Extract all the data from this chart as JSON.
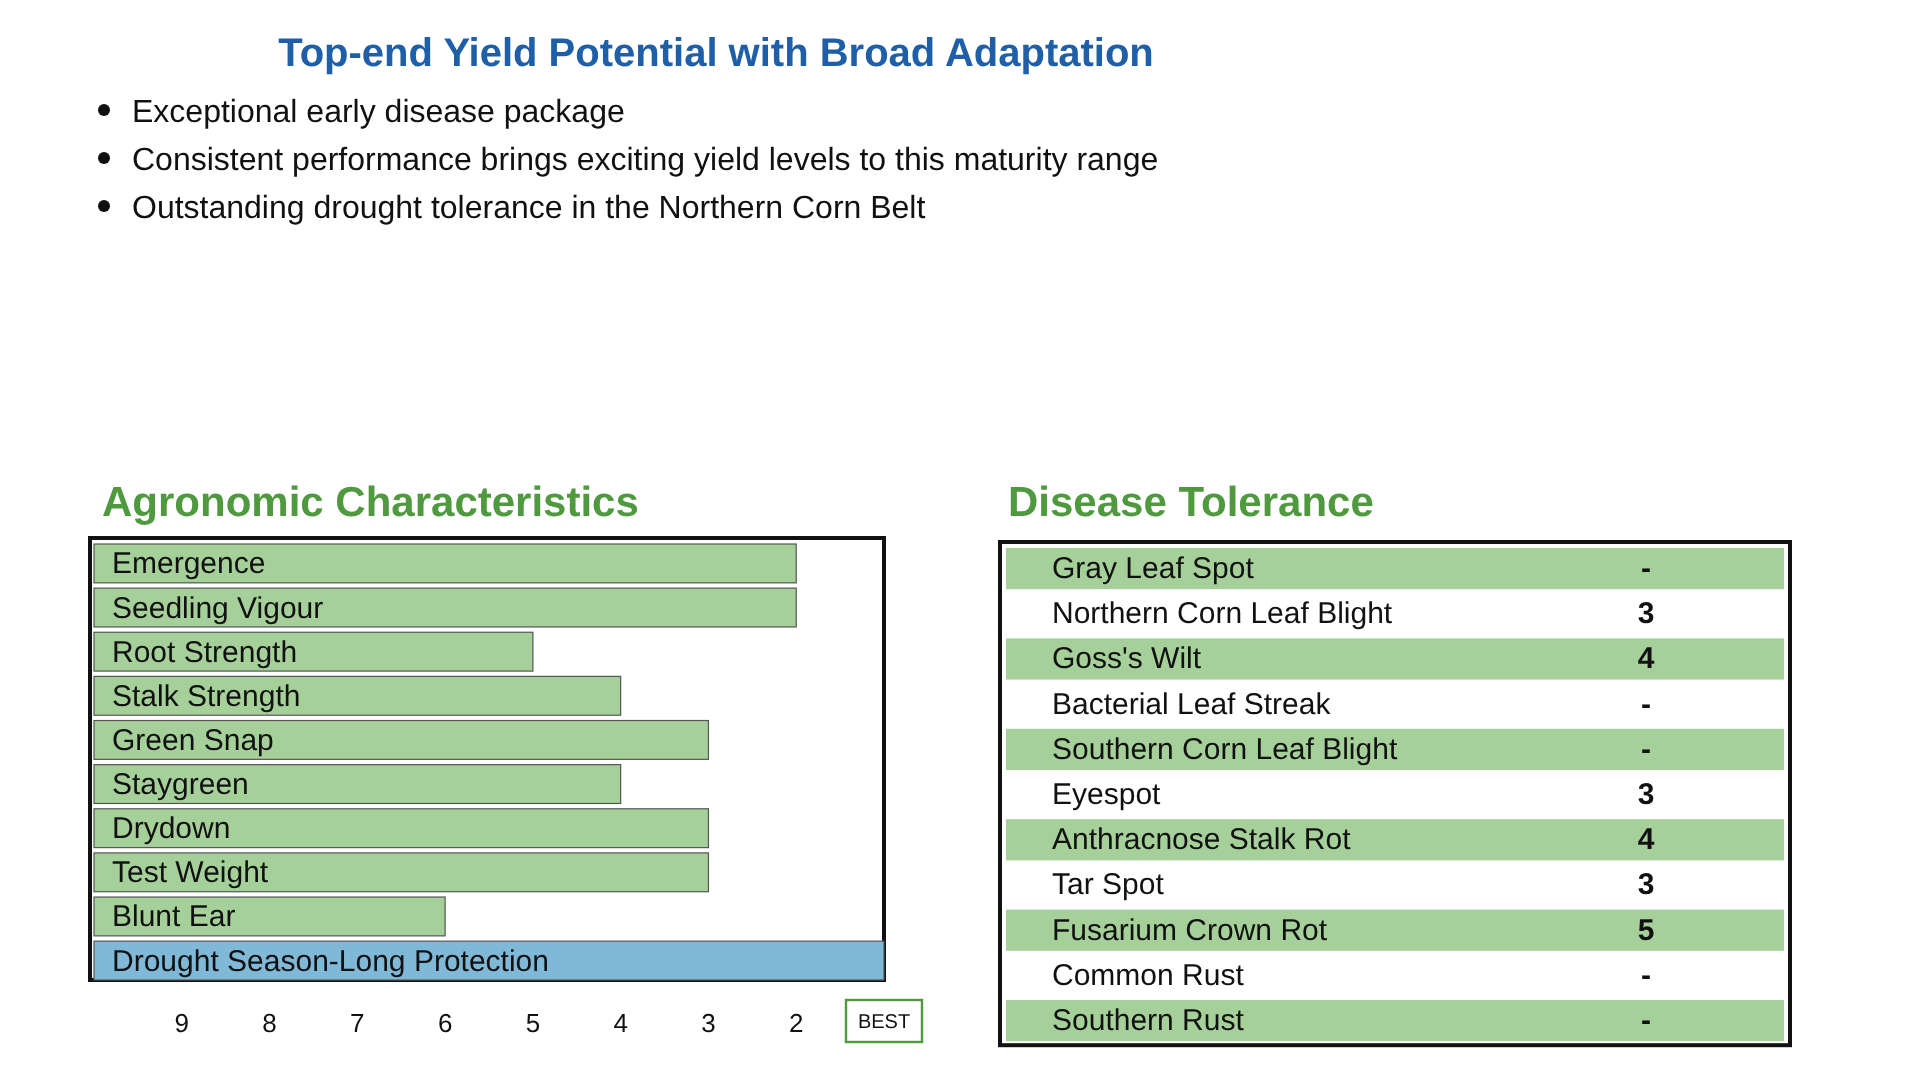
{
  "chart_data": [
    {
      "type": "bar",
      "orientation": "horizontal",
      "title": "Agronomic Characteristics",
      "annotations": [
        "Top-end Yield Potential with Broad Adaptation",
        "Exceptional early disease package",
        "Consistent performance brings exciting yield levels to this maturity range",
        "Outstanding drought tolerance in the Northern Corn Belt"
      ],
      "categories": [
        "Emergence",
        "Seedling Vigour",
        "Root Strength",
        "Stalk Strength",
        "Green Snap",
        "Staygreen",
        "Drydown",
        "Test Weight",
        "Blunt Ear",
        "Drought Season-Long Protection"
      ],
      "values": [
        -8,
        -8,
        -5,
        -6,
        -7,
        -6,
        -7,
        -7,
        -4,
        -9
      ],
      "base": [
        10,
        10,
        10,
        10,
        10,
        10,
        10,
        10,
        10,
        10
      ],
      "colors": [
        "#a6d09a",
        "#a6d09a",
        "#a6d09a",
        "#a6d09a",
        "#a6d09a",
        "#a6d09a",
        "#a6d09a",
        "#a6d09a",
        "#a6d09a",
        "#80b8d8"
      ],
      "xlim": [
        10,
        1
      ],
      "xticks": [
        9,
        8,
        7,
        6,
        5,
        4,
        3,
        2,
        {
          "value": 1,
          "label": "BEST"
        }
      ],
      "grid": false
    },
    {
      "type": "other",
      "title": "Disease Tolerance",
      "categories": [
        "Gray Leaf Spot",
        "Northern Corn Leaf Blight",
        "Goss's Wilt",
        "Bacterial Leaf Streak",
        "Southern Corn Leaf Blight",
        "Eyespot",
        "Anthracnose Stalk Rot",
        "Tar Spot",
        "Fusarium Crown Rot",
        "Common Rust",
        "Southern Rust"
      ],
      "value_labels": [
        "-",
        "3",
        "4",
        "-",
        "-",
        "3",
        "4",
        "3",
        "5",
        "-",
        "-"
      ]
    }
  ]
}
